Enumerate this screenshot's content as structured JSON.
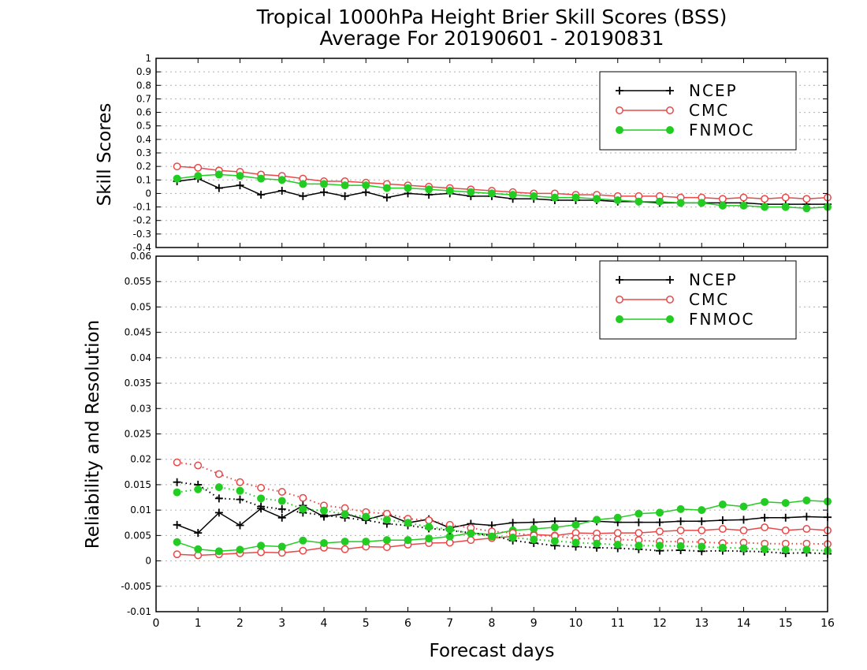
{
  "title": {
    "line1": "Tropical 1000hPa Height Brier Skill Scores (BSS)",
    "line2": "Average For 20190601 - 20190831"
  },
  "colors": {
    "NCEP": "#000000",
    "CMC": "#e84848",
    "FNMOC": "#22cc22",
    "grid": "#b0b0b0"
  },
  "chart_data": [
    {
      "type": "line",
      "panel": "top",
      "ylabel": "Skill Scores",
      "xlim": [
        0,
        16
      ],
      "ylim": [
        -0.4,
        1
      ],
      "yticks": [
        "-0.4",
        "-0.3",
        "-0.2",
        "-0.1",
        "0",
        "0.1",
        "0.2",
        "0.3",
        "0.4",
        "0.5",
        "0.6",
        "0.7",
        "0.8",
        "0.9",
        "1"
      ],
      "grid": "horizontal dotted",
      "legend": "top-right",
      "x": [
        0.5,
        1,
        1.5,
        2,
        2.5,
        3,
        3.5,
        4,
        4.5,
        5,
        5.5,
        6,
        6.5,
        7,
        7.5,
        8,
        8.5,
        9,
        9.5,
        10,
        10.5,
        11,
        11.5,
        12,
        12.5,
        13,
        13.5,
        14,
        14.5,
        15,
        15.5,
        16
      ],
      "series": [
        {
          "name": "NCEP",
          "marker": "plus",
          "style": "solid",
          "values": [
            0.09,
            0.11,
            0.04,
            0.06,
            -0.01,
            0.02,
            -0.02,
            0.01,
            -0.02,
            0.01,
            -0.03,
            0.0,
            -0.01,
            0.0,
            -0.02,
            -0.02,
            -0.04,
            -0.04,
            -0.05,
            -0.05,
            -0.05,
            -0.06,
            -0.06,
            -0.07,
            -0.07,
            -0.07,
            -0.07,
            -0.07,
            -0.08,
            -0.08,
            -0.08,
            -0.08
          ]
        },
        {
          "name": "CMC",
          "marker": "open-circle",
          "style": "solid",
          "values": [
            0.2,
            0.19,
            0.17,
            0.16,
            0.14,
            0.13,
            0.11,
            0.09,
            0.09,
            0.08,
            0.07,
            0.06,
            0.05,
            0.04,
            0.03,
            0.02,
            0.01,
            0.0,
            0.0,
            -0.01,
            -0.01,
            -0.02,
            -0.02,
            -0.02,
            -0.03,
            -0.03,
            -0.04,
            -0.03,
            -0.04,
            -0.03,
            -0.04,
            -0.03
          ]
        },
        {
          "name": "FNMOC",
          "marker": "filled-circle",
          "style": "solid",
          "values": [
            0.11,
            0.13,
            0.14,
            0.13,
            0.11,
            0.1,
            0.07,
            0.07,
            0.06,
            0.06,
            0.04,
            0.04,
            0.03,
            0.02,
            0.01,
            0.0,
            -0.01,
            -0.02,
            -0.03,
            -0.03,
            -0.04,
            -0.05,
            -0.06,
            -0.06,
            -0.07,
            -0.07,
            -0.09,
            -0.09,
            -0.1,
            -0.1,
            -0.11,
            -0.1
          ]
        }
      ]
    },
    {
      "type": "line",
      "panel": "bottom",
      "ylabel": "Reliability and Resolution",
      "xlabel": "Forecast days",
      "xlim": [
        0,
        16
      ],
      "xticks": [
        "0",
        "1",
        "2",
        "3",
        "4",
        "5",
        "6",
        "7",
        "8",
        "9",
        "10",
        "11",
        "12",
        "13",
        "14",
        "15",
        "16"
      ],
      "ylim": [
        -0.01,
        0.06
      ],
      "yticks": [
        "-0.01",
        "-0.005",
        "0",
        "0.005",
        "0.01",
        "0.015",
        "0.02",
        "0.025",
        "0.03",
        "0.035",
        "0.04",
        "0.045",
        "0.05",
        "0.055",
        "0.06"
      ],
      "grid": "horizontal dotted",
      "legend": "top-right",
      "x": [
        0.5,
        1,
        1.5,
        2,
        2.5,
        3,
        3.5,
        4,
        4.5,
        5,
        5.5,
        6,
        6.5,
        7,
        7.5,
        8,
        8.5,
        9,
        9.5,
        10,
        10.5,
        11,
        11.5,
        12,
        12.5,
        13,
        13.5,
        14,
        14.5,
        15,
        15.5,
        16
      ],
      "series": [
        {
          "name": "NCEP",
          "marker": "plus",
          "style": "solid",
          "values": [
            0.0071,
            0.0055,
            0.0095,
            0.007,
            0.0103,
            0.0085,
            0.0109,
            0.0087,
            0.0093,
            0.0081,
            0.0092,
            0.0075,
            0.0082,
            0.0065,
            0.0073,
            0.007,
            0.0075,
            0.0076,
            0.0078,
            0.0078,
            0.0078,
            0.0076,
            0.0076,
            0.0076,
            0.0078,
            0.0078,
            0.008,
            0.0081,
            0.0085,
            0.0085,
            0.0087,
            0.0086
          ]
        },
        {
          "name": "CMC",
          "marker": "open-circle",
          "style": "solid",
          "values": [
            0.0013,
            0.0011,
            0.0013,
            0.0015,
            0.0017,
            0.0016,
            0.002,
            0.0026,
            0.0023,
            0.0028,
            0.0027,
            0.0032,
            0.0035,
            0.0036,
            0.0041,
            0.0045,
            0.0048,
            0.0052,
            0.005,
            0.0055,
            0.0054,
            0.0055,
            0.0055,
            0.0058,
            0.006,
            0.006,
            0.0063,
            0.006,
            0.0066,
            0.006,
            0.0063,
            0.006
          ]
        },
        {
          "name": "FNMOC",
          "marker": "filled-circle",
          "style": "solid",
          "values": [
            0.0037,
            0.0023,
            0.0019,
            0.0022,
            0.003,
            0.0028,
            0.004,
            0.0035,
            0.0038,
            0.0038,
            0.0041,
            0.0041,
            0.0044,
            0.0048,
            0.0055,
            0.0052,
            0.006,
            0.0063,
            0.0066,
            0.0071,
            0.0081,
            0.0085,
            0.0093,
            0.0095,
            0.0102,
            0.01,
            0.0111,
            0.0107,
            0.0116,
            0.0114,
            0.0119,
            0.0117
          ]
        },
        {
          "name": "NCEP",
          "marker": "plus",
          "style": "dotted",
          "values": [
            0.0155,
            0.015,
            0.0123,
            0.0121,
            0.0107,
            0.0102,
            0.0095,
            0.009,
            0.0085,
            0.008,
            0.0073,
            0.007,
            0.0064,
            0.006,
            0.0055,
            0.005,
            0.004,
            0.0035,
            0.003,
            0.0028,
            0.0026,
            0.0025,
            0.0023,
            0.002,
            0.0021,
            0.0019,
            0.002,
            0.0019,
            0.0018,
            0.0015,
            0.0016,
            0.0014
          ]
        },
        {
          "name": "CMC",
          "marker": "open-circle",
          "style": "dotted",
          "values": [
            0.0194,
            0.0188,
            0.0171,
            0.0155,
            0.0144,
            0.0136,
            0.0124,
            0.0109,
            0.0104,
            0.0096,
            0.0093,
            0.0083,
            0.008,
            0.0071,
            0.0065,
            0.0058,
            0.0055,
            0.005,
            0.0049,
            0.0044,
            0.0044,
            0.0042,
            0.0041,
            0.0038,
            0.0038,
            0.0037,
            0.0035,
            0.0036,
            0.0034,
            0.0034,
            0.0034,
            0.0033
          ]
        },
        {
          "name": "FNMOC",
          "marker": "filled-circle",
          "style": "dotted",
          "values": [
            0.0135,
            0.0141,
            0.0145,
            0.0138,
            0.0123,
            0.0118,
            0.0102,
            0.0099,
            0.0092,
            0.0087,
            0.0081,
            0.0075,
            0.0067,
            0.0062,
            0.0054,
            0.0048,
            0.0046,
            0.0042,
            0.0039,
            0.0036,
            0.0034,
            0.0032,
            0.003,
            0.003,
            0.0029,
            0.0028,
            0.0026,
            0.0025,
            0.0023,
            0.0022,
            0.0022,
            0.002
          ]
        }
      ]
    }
  ]
}
